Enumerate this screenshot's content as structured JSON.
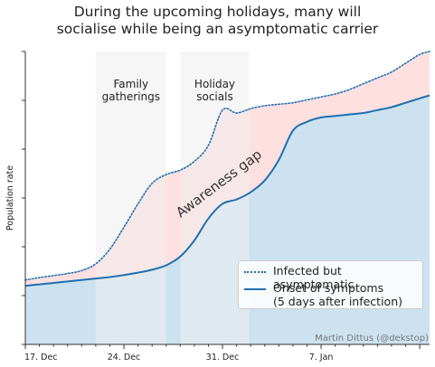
{
  "chart_data": {
    "type": "area",
    "title_line1": "During the upcoming holidays, many will",
    "title_line2": "socialise while being an asymptomatic carrier",
    "ylabel": "Population rate",
    "xlabel": "",
    "x_ticks": [
      "17. Dec",
      "24. Dec",
      "31. Dec",
      "7. Jan"
    ],
    "x_tick_days": [
      0,
      7,
      14,
      21
    ],
    "xlim": [
      0,
      28.7
    ],
    "ylim": [
      0,
      100
    ],
    "bands": [
      {
        "label_line1": "Family",
        "label_line2": "gatherings",
        "start": 5,
        "end": 10
      },
      {
        "label_line1": "Holiday",
        "label_line2": "socials",
        "start": 11,
        "end": 15.9
      }
    ],
    "annotation": "Awareness gap",
    "credit": "Martin Dittus (@dekstop)",
    "series": [
      {
        "name": "Infected but asymptomatic",
        "style": "dotted",
        "x": [
          0,
          1,
          2,
          3,
          4,
          5,
          6,
          7,
          8,
          9,
          10,
          11,
          12,
          13,
          14,
          15,
          16,
          17,
          18,
          19,
          20,
          21,
          22,
          23,
          24,
          25,
          26,
          27,
          28,
          28.7
        ],
        "values": [
          22,
          22.8,
          23.5,
          24.2,
          25.2,
          27.5,
          32.5,
          40,
          48,
          55,
          58,
          59.5,
          62.5,
          68,
          80,
          79,
          80.5,
          81.5,
          82,
          82.5,
          83.5,
          84.5,
          85.5,
          87,
          89,
          91,
          93,
          96,
          99,
          100
        ]
      },
      {
        "name_line1": "Onset of symptoms",
        "name_line2": "(5 days after infection)",
        "style": "solid",
        "x": [
          0,
          1,
          2,
          3,
          4,
          5,
          6,
          7,
          8,
          9,
          10,
          11,
          12,
          13,
          14,
          15,
          16,
          17,
          18,
          19,
          20,
          21,
          22,
          23,
          24,
          25,
          26,
          27,
          28,
          28.7
        ],
        "values": [
          20,
          20.5,
          21,
          21.5,
          22,
          22.5,
          23,
          23.7,
          24.5,
          25.5,
          27,
          30,
          35.5,
          43,
          48,
          49.5,
          52,
          56,
          63,
          73,
          76,
          77.5,
          78,
          78.5,
          79,
          80,
          81,
          82.5,
          84,
          85
        ]
      }
    ],
    "legend_position": "lower-right",
    "grid": false,
    "colors": {
      "line": "#1f6fb0",
      "under_fill": "#cde2f0",
      "gap_fill": "#ffe0e0",
      "band_fill": "#efefef"
    }
  }
}
